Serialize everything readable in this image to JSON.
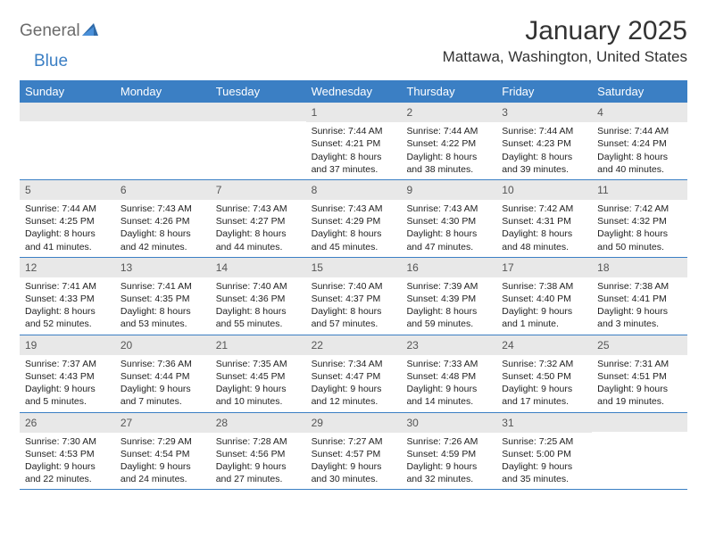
{
  "logo": {
    "text1": "General",
    "text2": "Blue"
  },
  "title": "January 2025",
  "location": "Mattawa, Washington, United States",
  "colors": {
    "header_bg": "#3b7fc4",
    "header_text": "#ffffff",
    "daynum_bg": "#e8e8e8",
    "body_text": "#222222",
    "logo_gray": "#6b6b6b",
    "logo_blue": "#3b7fc4",
    "row_border": "#3b7fc4"
  },
  "weekdays": [
    "Sunday",
    "Monday",
    "Tuesday",
    "Wednesday",
    "Thursday",
    "Friday",
    "Saturday"
  ],
  "weeks": [
    [
      {
        "n": "",
        "sunrise": "",
        "sunset": "",
        "daylight1": "",
        "daylight2": ""
      },
      {
        "n": "",
        "sunrise": "",
        "sunset": "",
        "daylight1": "",
        "daylight2": ""
      },
      {
        "n": "",
        "sunrise": "",
        "sunset": "",
        "daylight1": "",
        "daylight2": ""
      },
      {
        "n": "1",
        "sunrise": "Sunrise: 7:44 AM",
        "sunset": "Sunset: 4:21 PM",
        "daylight1": "Daylight: 8 hours",
        "daylight2": "and 37 minutes."
      },
      {
        "n": "2",
        "sunrise": "Sunrise: 7:44 AM",
        "sunset": "Sunset: 4:22 PM",
        "daylight1": "Daylight: 8 hours",
        "daylight2": "and 38 minutes."
      },
      {
        "n": "3",
        "sunrise": "Sunrise: 7:44 AM",
        "sunset": "Sunset: 4:23 PM",
        "daylight1": "Daylight: 8 hours",
        "daylight2": "and 39 minutes."
      },
      {
        "n": "4",
        "sunrise": "Sunrise: 7:44 AM",
        "sunset": "Sunset: 4:24 PM",
        "daylight1": "Daylight: 8 hours",
        "daylight2": "and 40 minutes."
      }
    ],
    [
      {
        "n": "5",
        "sunrise": "Sunrise: 7:44 AM",
        "sunset": "Sunset: 4:25 PM",
        "daylight1": "Daylight: 8 hours",
        "daylight2": "and 41 minutes."
      },
      {
        "n": "6",
        "sunrise": "Sunrise: 7:43 AM",
        "sunset": "Sunset: 4:26 PM",
        "daylight1": "Daylight: 8 hours",
        "daylight2": "and 42 minutes."
      },
      {
        "n": "7",
        "sunrise": "Sunrise: 7:43 AM",
        "sunset": "Sunset: 4:27 PM",
        "daylight1": "Daylight: 8 hours",
        "daylight2": "and 44 minutes."
      },
      {
        "n": "8",
        "sunrise": "Sunrise: 7:43 AM",
        "sunset": "Sunset: 4:29 PM",
        "daylight1": "Daylight: 8 hours",
        "daylight2": "and 45 minutes."
      },
      {
        "n": "9",
        "sunrise": "Sunrise: 7:43 AM",
        "sunset": "Sunset: 4:30 PM",
        "daylight1": "Daylight: 8 hours",
        "daylight2": "and 47 minutes."
      },
      {
        "n": "10",
        "sunrise": "Sunrise: 7:42 AM",
        "sunset": "Sunset: 4:31 PM",
        "daylight1": "Daylight: 8 hours",
        "daylight2": "and 48 minutes."
      },
      {
        "n": "11",
        "sunrise": "Sunrise: 7:42 AM",
        "sunset": "Sunset: 4:32 PM",
        "daylight1": "Daylight: 8 hours",
        "daylight2": "and 50 minutes."
      }
    ],
    [
      {
        "n": "12",
        "sunrise": "Sunrise: 7:41 AM",
        "sunset": "Sunset: 4:33 PM",
        "daylight1": "Daylight: 8 hours",
        "daylight2": "and 52 minutes."
      },
      {
        "n": "13",
        "sunrise": "Sunrise: 7:41 AM",
        "sunset": "Sunset: 4:35 PM",
        "daylight1": "Daylight: 8 hours",
        "daylight2": "and 53 minutes."
      },
      {
        "n": "14",
        "sunrise": "Sunrise: 7:40 AM",
        "sunset": "Sunset: 4:36 PM",
        "daylight1": "Daylight: 8 hours",
        "daylight2": "and 55 minutes."
      },
      {
        "n": "15",
        "sunrise": "Sunrise: 7:40 AM",
        "sunset": "Sunset: 4:37 PM",
        "daylight1": "Daylight: 8 hours",
        "daylight2": "and 57 minutes."
      },
      {
        "n": "16",
        "sunrise": "Sunrise: 7:39 AM",
        "sunset": "Sunset: 4:39 PM",
        "daylight1": "Daylight: 8 hours",
        "daylight2": "and 59 minutes."
      },
      {
        "n": "17",
        "sunrise": "Sunrise: 7:38 AM",
        "sunset": "Sunset: 4:40 PM",
        "daylight1": "Daylight: 9 hours",
        "daylight2": "and 1 minute."
      },
      {
        "n": "18",
        "sunrise": "Sunrise: 7:38 AM",
        "sunset": "Sunset: 4:41 PM",
        "daylight1": "Daylight: 9 hours",
        "daylight2": "and 3 minutes."
      }
    ],
    [
      {
        "n": "19",
        "sunrise": "Sunrise: 7:37 AM",
        "sunset": "Sunset: 4:43 PM",
        "daylight1": "Daylight: 9 hours",
        "daylight2": "and 5 minutes."
      },
      {
        "n": "20",
        "sunrise": "Sunrise: 7:36 AM",
        "sunset": "Sunset: 4:44 PM",
        "daylight1": "Daylight: 9 hours",
        "daylight2": "and 7 minutes."
      },
      {
        "n": "21",
        "sunrise": "Sunrise: 7:35 AM",
        "sunset": "Sunset: 4:45 PM",
        "daylight1": "Daylight: 9 hours",
        "daylight2": "and 10 minutes."
      },
      {
        "n": "22",
        "sunrise": "Sunrise: 7:34 AM",
        "sunset": "Sunset: 4:47 PM",
        "daylight1": "Daylight: 9 hours",
        "daylight2": "and 12 minutes."
      },
      {
        "n": "23",
        "sunrise": "Sunrise: 7:33 AM",
        "sunset": "Sunset: 4:48 PM",
        "daylight1": "Daylight: 9 hours",
        "daylight2": "and 14 minutes."
      },
      {
        "n": "24",
        "sunrise": "Sunrise: 7:32 AM",
        "sunset": "Sunset: 4:50 PM",
        "daylight1": "Daylight: 9 hours",
        "daylight2": "and 17 minutes."
      },
      {
        "n": "25",
        "sunrise": "Sunrise: 7:31 AM",
        "sunset": "Sunset: 4:51 PM",
        "daylight1": "Daylight: 9 hours",
        "daylight2": "and 19 minutes."
      }
    ],
    [
      {
        "n": "26",
        "sunrise": "Sunrise: 7:30 AM",
        "sunset": "Sunset: 4:53 PM",
        "daylight1": "Daylight: 9 hours",
        "daylight2": "and 22 minutes."
      },
      {
        "n": "27",
        "sunrise": "Sunrise: 7:29 AM",
        "sunset": "Sunset: 4:54 PM",
        "daylight1": "Daylight: 9 hours",
        "daylight2": "and 24 minutes."
      },
      {
        "n": "28",
        "sunrise": "Sunrise: 7:28 AM",
        "sunset": "Sunset: 4:56 PM",
        "daylight1": "Daylight: 9 hours",
        "daylight2": "and 27 minutes."
      },
      {
        "n": "29",
        "sunrise": "Sunrise: 7:27 AM",
        "sunset": "Sunset: 4:57 PM",
        "daylight1": "Daylight: 9 hours",
        "daylight2": "and 30 minutes."
      },
      {
        "n": "30",
        "sunrise": "Sunrise: 7:26 AM",
        "sunset": "Sunset: 4:59 PM",
        "daylight1": "Daylight: 9 hours",
        "daylight2": "and 32 minutes."
      },
      {
        "n": "31",
        "sunrise": "Sunrise: 7:25 AM",
        "sunset": "Sunset: 5:00 PM",
        "daylight1": "Daylight: 9 hours",
        "daylight2": "and 35 minutes."
      },
      {
        "n": "",
        "sunrise": "",
        "sunset": "",
        "daylight1": "",
        "daylight2": ""
      }
    ]
  ]
}
